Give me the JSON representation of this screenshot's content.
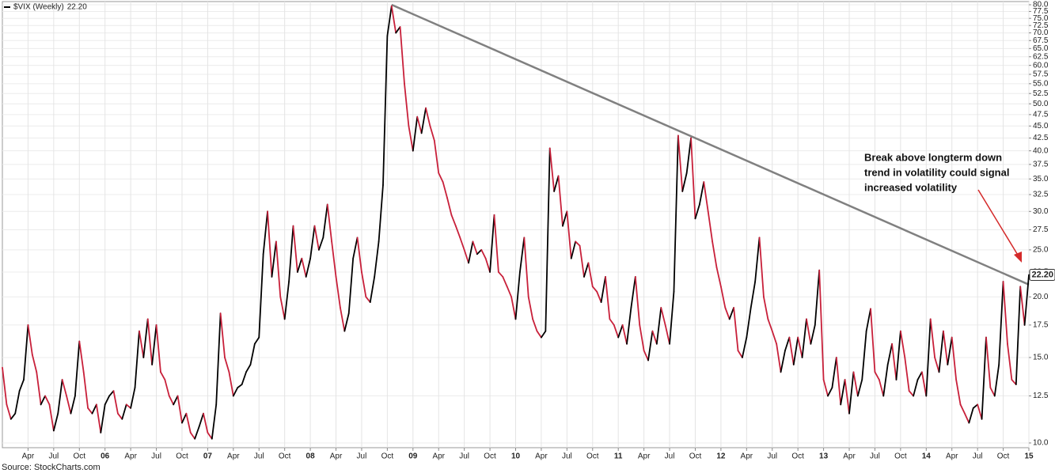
{
  "chart_data": {
    "type": "line",
    "log_scale": true,
    "grid": true,
    "categories": [
      null,
      null,
      null,
      null,
      null,
      null,
      "Apr",
      null,
      null,
      null,
      null,
      null,
      "Jul",
      null,
      null,
      null,
      null,
      null,
      "Oct",
      null,
      null,
      null,
      null,
      null,
      "06",
      null,
      null,
      null,
      null,
      null,
      "Apr",
      null,
      null,
      null,
      null,
      null,
      "Jul",
      null,
      null,
      null,
      null,
      null,
      "Oct",
      null,
      null,
      null,
      null,
      null,
      "07",
      null,
      null,
      null,
      null,
      null,
      "Apr",
      null,
      null,
      null,
      null,
      null,
      "Jul",
      null,
      null,
      null,
      null,
      null,
      "Oct",
      null,
      null,
      null,
      null,
      null,
      "08",
      null,
      null,
      null,
      null,
      null,
      "Apr",
      null,
      null,
      null,
      null,
      null,
      "Jul",
      null,
      null,
      null,
      null,
      null,
      "Oct",
      null,
      null,
      null,
      null,
      null,
      "09",
      null,
      null,
      null,
      null,
      null,
      "Apr",
      null,
      null,
      null,
      null,
      null,
      "Jul",
      null,
      null,
      null,
      null,
      null,
      "Oct",
      null,
      null,
      null,
      null,
      null,
      "10",
      null,
      null,
      null,
      null,
      null,
      "Apr",
      null,
      null,
      null,
      null,
      null,
      "Jul",
      null,
      null,
      null,
      null,
      null,
      "Oct",
      null,
      null,
      null,
      null,
      null,
      "11",
      null,
      null,
      null,
      null,
      null,
      "Apr",
      null,
      null,
      null,
      null,
      null,
      "Jul",
      null,
      null,
      null,
      null,
      null,
      "Oct",
      null,
      null,
      null,
      null,
      null,
      "12",
      null,
      null,
      null,
      null,
      null,
      "Apr",
      null,
      null,
      null,
      null,
      null,
      "Jul",
      null,
      null,
      null,
      null,
      null,
      "Oct",
      null,
      null,
      null,
      null,
      null,
      "13",
      null,
      null,
      null,
      null,
      null,
      "Apr",
      null,
      null,
      null,
      null,
      null,
      "Jul",
      null,
      null,
      null,
      null,
      null,
      "Oct",
      null,
      null,
      null,
      null,
      null,
      "14",
      null,
      null,
      null,
      null,
      null,
      "Apr",
      null,
      null,
      null,
      null,
      null,
      "Jul",
      null,
      null,
      null,
      null,
      null,
      "Oct",
      null,
      null,
      null,
      null,
      null,
      "15"
    ],
    "series": [
      {
        "name": "$VIX (Weekly)",
        "up_color": "#000000",
        "down_color": "#c8203a",
        "values": [
          14.3,
          12.0,
          11.2,
          11.5,
          12.8,
          13.5,
          17.5,
          15.2,
          14.0,
          12.0,
          12.5,
          12.0,
          10.6,
          11.5,
          13.5,
          12.5,
          11.5,
          12.5,
          16.2,
          14.0,
          11.8,
          11.5,
          12.0,
          10.5,
          12.0,
          12.5,
          12.8,
          11.5,
          11.2,
          12.0,
          11.8,
          13.0,
          17.0,
          15.0,
          18.0,
          14.5,
          17.5,
          14.0,
          13.5,
          12.5,
          12.0,
          12.5,
          11.0,
          11.5,
          10.5,
          10.2,
          10.8,
          11.5,
          10.5,
          10.2,
          12.0,
          18.5,
          15.0,
          14.0,
          12.5,
          13.0,
          13.2,
          14.0,
          14.5,
          16.0,
          16.5,
          24.5,
          30.0,
          22.0,
          26.0,
          20.0,
          18.0,
          21.5,
          28.0,
          22.5,
          24.0,
          22.0,
          24.0,
          28.0,
          25.0,
          26.5,
          31.0,
          26.0,
          22.0,
          19.0,
          17.0,
          18.5,
          24.0,
          26.5,
          22.5,
          20.0,
          19.5,
          22.0,
          26.0,
          34.0,
          69.0,
          79.5,
          70.0,
          72.0,
          55.0,
          45.0,
          40.0,
          47.0,
          43.5,
          49.0,
          45.0,
          42.0,
          36.0,
          34.5,
          32.0,
          29.5,
          28.0,
          26.5,
          25.0,
          23.5,
          26.0,
          24.5,
          25.0,
          24.0,
          22.5,
          29.5,
          22.5,
          22.0,
          21.0,
          20.0,
          18.0,
          22.5,
          26.5,
          20.0,
          18.0,
          17.0,
          16.5,
          17.0,
          40.5,
          33.0,
          35.5,
          28.0,
          30.0,
          24.0,
          26.0,
          25.5,
          22.0,
          23.5,
          21.0,
          20.5,
          19.5,
          22.0,
          18.0,
          17.5,
          16.5,
          17.5,
          16.0,
          19.0,
          22.0,
          17.5,
          15.5,
          14.8,
          17.0,
          16.0,
          19.0,
          17.5,
          16.0,
          20.5,
          43.0,
          33.0,
          36.0,
          42.5,
          29.0,
          31.0,
          34.5,
          30.0,
          26.0,
          23.0,
          21.0,
          19.0,
          18.0,
          19.0,
          15.5,
          15.0,
          16.5,
          19.0,
          21.5,
          26.5,
          20.0,
          18.0,
          17.0,
          16.0,
          14.0,
          15.5,
          16.5,
          14.5,
          16.5,
          15.0,
          18.0,
          16.0,
          17.5,
          22.7,
          13.5,
          12.5,
          13.0,
          15.0,
          12.0,
          13.5,
          11.5,
          14.0,
          12.5,
          13.5,
          17.0,
          18.9,
          14.0,
          13.5,
          12.5,
          14.5,
          16.0,
          13.5,
          17.0,
          15.0,
          12.8,
          12.5,
          13.5,
          14.0,
          12.5,
          18.0,
          15.0,
          14.0,
          17.0,
          14.5,
          16.5,
          13.5,
          12.0,
          11.5,
          11.0,
          11.8,
          12.0,
          11.2,
          16.5,
          13.0,
          12.5,
          14.5,
          21.5,
          16.0,
          13.5,
          13.2,
          21.0,
          17.5,
          22.2
        ]
      }
    ],
    "last_value_label": "22.20",
    "ylim": [
      10,
      80
    ],
    "yticks": [
      {
        "value": 10,
        "label": "10.0"
      },
      12.5,
      {
        "value": 15,
        "label": "15.0"
      },
      17.5,
      {
        "value": 20,
        "label": "20.0"
      },
      22.5,
      {
        "value": 25,
        "label": "25.0"
      },
      27.5,
      {
        "value": 30,
        "label": "30.0"
      },
      32.5,
      {
        "value": 35,
        "label": "35.0"
      },
      37.5,
      {
        "value": 40,
        "label": "40.0"
      },
      42.5,
      {
        "value": 45,
        "label": "45.0"
      },
      47.5,
      {
        "value": 50,
        "label": "50.0"
      },
      52.5,
      {
        "value": 55,
        "label": "55.0"
      },
      57.5,
      {
        "value": 60,
        "label": "60.0"
      },
      62.5,
      {
        "value": 65,
        "label": "65.0"
      },
      67.5,
      {
        "value": 70,
        "label": "70.0"
      },
      72.5,
      {
        "value": 75,
        "label": "75.0"
      },
      77.5,
      {
        "value": 80,
        "label": "80.0"
      }
    ],
    "trendline": {
      "start_index": 91,
      "start_value": 80,
      "end_index": 240,
      "end_value": 21.2,
      "color": "#808080"
    },
    "annotation": {
      "lines": [
        "Break above longterm down",
        "trend in volatility could signal",
        "increased volatility"
      ],
      "color": "#d42a2a"
    },
    "source": "Source: StockCharts.com"
  }
}
